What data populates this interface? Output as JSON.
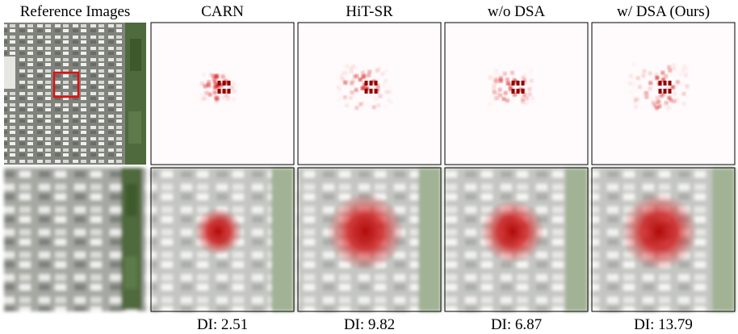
{
  "reference": {
    "title": "Reference Images"
  },
  "columns": [
    {
      "title": "CARN",
      "caption": "DI: 2.51"
    },
    {
      "title": "HiT-SR",
      "caption": "DI: 9.82"
    },
    {
      "title": "w/o DSA",
      "caption": "DI: 6.87"
    },
    {
      "title": "w/ DSA (Ours)",
      "caption": "DI: 13.79"
    }
  ]
}
